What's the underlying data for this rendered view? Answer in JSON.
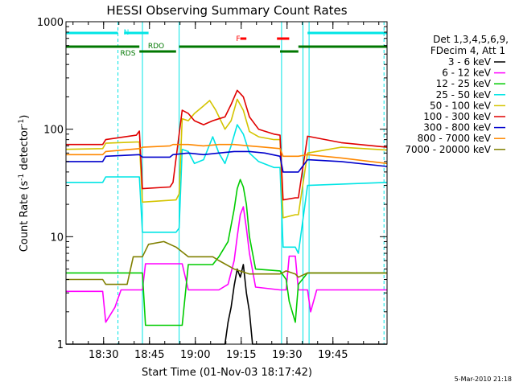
{
  "chart_data": {
    "type": "line",
    "title": "HESSI Observing Summary Count Rates",
    "xlabel": "Start Time (01-Nov-03 18:17:42)",
    "ylabel": "Count Rate (s",
    "ylabel_sup": "-1",
    "ylabel_tail": " detector",
    "ylabel_sup2": "-1",
    "ylabel_end": ")",
    "y_scale": "log",
    "ylim": [
      1,
      1000
    ],
    "y_ticks": [
      {
        "v": 1,
        "label": "1"
      },
      {
        "v": 10,
        "label": "10"
      },
      {
        "v": 100,
        "label": "100"
      },
      {
        "v": 1000,
        "label": "1000"
      }
    ],
    "x_unit": "minutes since 18:17:42",
    "xlim": [
      0,
      105
    ],
    "x_ticks": [
      {
        "v": 12.3,
        "label": "18:30"
      },
      {
        "v": 27.3,
        "label": "18:45"
      },
      {
        "v": 42.3,
        "label": "19:00"
      },
      {
        "v": 57.3,
        "label": "19:15"
      },
      {
        "v": 72.3,
        "label": "19:30"
      },
      {
        "v": 87.3,
        "label": "19:45"
      }
    ],
    "timestamp": "5-Mar-2010 21:18",
    "legend": {
      "header": [
        "Det 1,3,4,5,6,9,",
        "FDecim 4, Att 1"
      ],
      "placement": "right"
    },
    "series": [
      {
        "name": "3 - 6 keV",
        "color": "#000000",
        "points": [
          [
            0,
            1
          ],
          [
            52,
            1
          ],
          [
            53,
            1.6
          ],
          [
            54,
            2.2
          ],
          [
            55,
            3.5
          ],
          [
            56,
            5.0
          ],
          [
            57,
            4.2
          ],
          [
            58,
            5.5
          ],
          [
            59,
            3.0
          ],
          [
            60,
            2.0
          ],
          [
            61,
            1
          ],
          [
            105,
            1
          ]
        ]
      },
      {
        "name": "6 - 12 keV",
        "color": "#ff00ff",
        "points": [
          [
            0,
            3.1
          ],
          [
            12,
            3.1
          ],
          [
            13,
            1.6
          ],
          [
            16,
            2.2
          ],
          [
            18,
            3.2
          ],
          [
            25,
            3.2
          ],
          [
            26,
            5.6
          ],
          [
            38,
            5.6
          ],
          [
            40,
            3.2
          ],
          [
            50,
            3.2
          ],
          [
            53,
            3.6
          ],
          [
            55,
            6
          ],
          [
            56,
            10
          ],
          [
            57,
            16
          ],
          [
            58,
            19
          ],
          [
            59,
            12
          ],
          [
            60,
            7
          ],
          [
            62,
            3.4
          ],
          [
            70,
            3.2
          ],
          [
            72,
            3.2
          ],
          [
            73,
            6.6
          ],
          [
            75,
            6.6
          ],
          [
            76,
            3.2
          ],
          [
            79,
            3.2
          ],
          [
            80,
            2.0
          ],
          [
            82,
            3.2
          ],
          [
            105,
            3.2
          ]
        ]
      },
      {
        "name": "12 - 25 keV",
        "color": "#00cc00",
        "points": [
          [
            0,
            4.6
          ],
          [
            25,
            4.6
          ],
          [
            26,
            1.5
          ],
          [
            38,
            1.5
          ],
          [
            40,
            5.5
          ],
          [
            48,
            5.5
          ],
          [
            50,
            6.5
          ],
          [
            53,
            9
          ],
          [
            55,
            18
          ],
          [
            56,
            28
          ],
          [
            57,
            34
          ],
          [
            58,
            29
          ],
          [
            59,
            20
          ],
          [
            60,
            10
          ],
          [
            62,
            5
          ],
          [
            70,
            4.8
          ],
          [
            72,
            4.0
          ],
          [
            73,
            2.5
          ],
          [
            75,
            1.6
          ],
          [
            76,
            3.6
          ],
          [
            79,
            4.6
          ],
          [
            105,
            4.6
          ]
        ]
      },
      {
        "name": "25 - 50 keV",
        "color": "#00e5e5",
        "points": [
          [
            0,
            32
          ],
          [
            12,
            32
          ],
          [
            13,
            36
          ],
          [
            23,
            36
          ],
          [
            24,
            36
          ],
          [
            25,
            11
          ],
          [
            36,
            11
          ],
          [
            37,
            12
          ],
          [
            38,
            65
          ],
          [
            40,
            62
          ],
          [
            42,
            48
          ],
          [
            45,
            52
          ],
          [
            48,
            85
          ],
          [
            50,
            60
          ],
          [
            52,
            48
          ],
          [
            54,
            70
          ],
          [
            56,
            110
          ],
          [
            58,
            90
          ],
          [
            60,
            60
          ],
          [
            63,
            50
          ],
          [
            68,
            44
          ],
          [
            70,
            44
          ],
          [
            71,
            8
          ],
          [
            75,
            8
          ],
          [
            76,
            7
          ],
          [
            79,
            30
          ],
          [
            105,
            32
          ]
        ]
      },
      {
        "name": "50 - 100 keV",
        "color": "#d4c400",
        "points": [
          [
            0,
            65
          ],
          [
            12,
            66
          ],
          [
            13,
            74
          ],
          [
            23,
            76
          ],
          [
            24,
            76
          ],
          [
            25,
            21
          ],
          [
            36,
            22
          ],
          [
            37,
            25
          ],
          [
            38,
            125
          ],
          [
            40,
            120
          ],
          [
            42,
            140
          ],
          [
            45,
            165
          ],
          [
            47,
            185
          ],
          [
            49,
            150
          ],
          [
            52,
            100
          ],
          [
            54,
            120
          ],
          [
            56,
            190
          ],
          [
            58,
            150
          ],
          [
            60,
            95
          ],
          [
            63,
            85
          ],
          [
            68,
            80
          ],
          [
            70,
            80
          ],
          [
            71,
            15
          ],
          [
            75,
            16
          ],
          [
            76,
            16
          ],
          [
            79,
            60
          ],
          [
            90,
            68
          ],
          [
            105,
            64
          ]
        ]
      },
      {
        "name": "100 - 300 keV",
        "color": "#e00000",
        "points": [
          [
            0,
            72
          ],
          [
            12,
            72
          ],
          [
            13,
            80
          ],
          [
            23,
            88
          ],
          [
            24,
            96
          ],
          [
            25,
            28
          ],
          [
            34,
            29
          ],
          [
            35,
            32
          ],
          [
            38,
            150
          ],
          [
            40,
            140
          ],
          [
            42,
            120
          ],
          [
            45,
            110
          ],
          [
            48,
            120
          ],
          [
            50,
            125
          ],
          [
            52,
            130
          ],
          [
            54,
            170
          ],
          [
            56,
            230
          ],
          [
            58,
            200
          ],
          [
            60,
            130
          ],
          [
            63,
            100
          ],
          [
            68,
            90
          ],
          [
            70,
            88
          ],
          [
            71,
            22
          ],
          [
            75,
            23
          ],
          [
            76,
            23
          ],
          [
            79,
            86
          ],
          [
            90,
            75
          ],
          [
            105,
            68
          ]
        ]
      },
      {
        "name": "300 - 800 keV",
        "color": "#0000cc",
        "points": [
          [
            0,
            50
          ],
          [
            12,
            50
          ],
          [
            13,
            56
          ],
          [
            24,
            58
          ],
          [
            25,
            55
          ],
          [
            34,
            55
          ],
          [
            35,
            58
          ],
          [
            40,
            60
          ],
          [
            45,
            58
          ],
          [
            50,
            60
          ],
          [
            55,
            62
          ],
          [
            60,
            62
          ],
          [
            65,
            60
          ],
          [
            70,
            56
          ],
          [
            71,
            40
          ],
          [
            75,
            40
          ],
          [
            76,
            40
          ],
          [
            79,
            52
          ],
          [
            90,
            50
          ],
          [
            105,
            45
          ]
        ]
      },
      {
        "name": "800 - 7000 keV",
        "color": "#ff8800",
        "points": [
          [
            0,
            58
          ],
          [
            12,
            58
          ],
          [
            13,
            62
          ],
          [
            24,
            66
          ],
          [
            25,
            68
          ],
          [
            34,
            70
          ],
          [
            35,
            72
          ],
          [
            40,
            72
          ],
          [
            45,
            70
          ],
          [
            50,
            72
          ],
          [
            55,
            72
          ],
          [
            60,
            70
          ],
          [
            65,
            68
          ],
          [
            70,
            66
          ],
          [
            71,
            56
          ],
          [
            75,
            56
          ],
          [
            76,
            56
          ],
          [
            79,
            58
          ],
          [
            90,
            54
          ],
          [
            105,
            48
          ]
        ]
      },
      {
        "name": "7000 - 20000 keV",
        "color": "#808000",
        "points": [
          [
            0,
            4.0
          ],
          [
            12,
            4.0
          ],
          [
            13,
            3.6
          ],
          [
            20,
            3.6
          ],
          [
            22,
            6.5
          ],
          [
            25,
            6.5
          ],
          [
            27,
            8.5
          ],
          [
            32,
            9
          ],
          [
            36,
            8
          ],
          [
            40,
            6.5
          ],
          [
            48,
            6.5
          ],
          [
            50,
            6.0
          ],
          [
            55,
            5.0
          ],
          [
            60,
            4.5
          ],
          [
            65,
            4.5
          ],
          [
            70,
            4.5
          ],
          [
            72,
            4.8
          ],
          [
            75,
            4.5
          ],
          [
            76,
            4.2
          ],
          [
            79,
            4.6
          ],
          [
            105,
            4.6
          ]
        ]
      }
    ],
    "state_bars": [
      {
        "label": "N",
        "color": "#00e5e5",
        "segments": [
          [
            0,
            17
          ],
          [
            19,
            27
          ],
          [
            79,
            105
          ]
        ]
      },
      {
        "label": "RDO",
        "color": "#007700",
        "segments": [
          [
            0,
            24
          ],
          [
            37,
            70
          ],
          [
            76,
            105
          ]
        ]
      },
      {
        "label": "RDS",
        "color": "#007700",
        "segments": [
          [
            24,
            36
          ],
          [
            70,
            76
          ]
        ]
      },
      {
        "label": "F",
        "color": "#ff0000",
        "segments": [
          [
            57,
            59
          ],
          [
            69,
            73
          ]
        ]
      }
    ],
    "vertical_markers": {
      "solid": [
        25,
        37,
        70.5,
        77.5,
        79.5
      ],
      "dashed": [
        17,
        104
      ]
    }
  }
}
